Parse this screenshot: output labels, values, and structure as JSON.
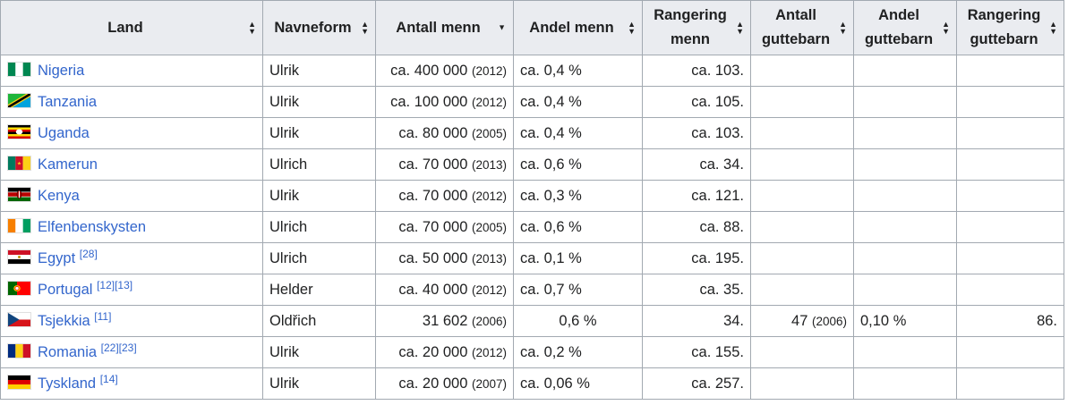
{
  "columns": [
    {
      "label": "Land",
      "sort": "both"
    },
    {
      "label": "Navneform",
      "sort": "both"
    },
    {
      "label": "Antall menn",
      "sort": "down"
    },
    {
      "label": "Andel menn",
      "sort": "both"
    },
    {
      "label": "Rangering menn",
      "sort": "both"
    },
    {
      "label": "Antall guttebarn",
      "sort": "both"
    },
    {
      "label": "Andel guttebarn",
      "sort": "both"
    },
    {
      "label": "Rangering guttebarn",
      "sort": "both"
    }
  ],
  "rows": [
    {
      "country": "Nigeria",
      "ref": "",
      "flag": "nigeria-flag-icon",
      "name_form": "Ulrik",
      "men_count": "ca. 400 000",
      "men_year": "(2012)",
      "men_share": "ca. 0,4 %",
      "men_rank": "ca. 103.",
      "boys_count": "",
      "boys_year": "",
      "boys_share": "",
      "boys_rank": ""
    },
    {
      "country": "Tanzania",
      "ref": "",
      "flag": "tanzania-flag-icon",
      "name_form": "Ulrik",
      "men_count": "ca. 100 000",
      "men_year": "(2012)",
      "men_share": "ca. 0,4 %",
      "men_rank": "ca. 105.",
      "boys_count": "",
      "boys_year": "",
      "boys_share": "",
      "boys_rank": ""
    },
    {
      "country": "Uganda",
      "ref": "",
      "flag": "uganda-flag-icon",
      "name_form": "Ulrik",
      "men_count": "ca. 80 000",
      "men_year": "(2005)",
      "men_share": "ca. 0,4 %",
      "men_rank": "ca. 103.",
      "boys_count": "",
      "boys_year": "",
      "boys_share": "",
      "boys_rank": ""
    },
    {
      "country": "Kamerun",
      "ref": "",
      "flag": "cameroon-flag-icon",
      "name_form": "Ulrich",
      "men_count": "ca. 70 000",
      "men_year": "(2013)",
      "men_share": "ca. 0,6 %",
      "men_rank": "ca. 34.",
      "boys_count": "",
      "boys_year": "",
      "boys_share": "",
      "boys_rank": ""
    },
    {
      "country": "Kenya",
      "ref": "",
      "flag": "kenya-flag-icon",
      "name_form": "Ulrik",
      "men_count": "ca. 70 000",
      "men_year": "(2012)",
      "men_share": "ca. 0,3 %",
      "men_rank": "ca. 121.",
      "boys_count": "",
      "boys_year": "",
      "boys_share": "",
      "boys_rank": ""
    },
    {
      "country": "Elfenbenskysten",
      "ref": "",
      "flag": "ivory-coast-flag-icon",
      "name_form": "Ulrich",
      "men_count": "ca. 70 000",
      "men_year": "(2005)",
      "men_share": "ca. 0,6 %",
      "men_rank": "ca. 88.",
      "boys_count": "",
      "boys_year": "",
      "boys_share": "",
      "boys_rank": ""
    },
    {
      "country": "Egypt",
      "ref": "[28]",
      "flag": "egypt-flag-icon",
      "name_form": "Ulrich",
      "men_count": "ca. 50 000",
      "men_year": "(2013)",
      "men_share": "ca. 0,1 %",
      "men_rank": "ca. 195.",
      "boys_count": "",
      "boys_year": "",
      "boys_share": "",
      "boys_rank": ""
    },
    {
      "country": "Portugal",
      "ref": "[12][13]",
      "flag": "portugal-flag-icon",
      "name_form": "Helder",
      "men_count": "ca. 40 000",
      "men_year": "(2012)",
      "men_share": "ca. 0,7 %",
      "men_rank": "ca. 35.",
      "boys_count": "",
      "boys_year": "",
      "boys_share": "",
      "boys_rank": ""
    },
    {
      "country": "Tsjekkia",
      "ref": "[11]",
      "flag": "czechia-flag-icon",
      "name_form": "Oldřich",
      "men_count": "31 602",
      "men_year": "(2006)",
      "men_share": "0,6 %",
      "men_rank": "34.",
      "boys_count": "47",
      "boys_year": "(2006)",
      "boys_share": "0,10 %",
      "boys_rank": "86."
    },
    {
      "country": "Romania",
      "ref": "[22][23]",
      "flag": "romania-flag-icon",
      "name_form": "Ulrik",
      "men_count": "ca. 20 000",
      "men_year": "(2012)",
      "men_share": "ca. 0,2 %",
      "men_rank": "ca. 155.",
      "boys_count": "",
      "boys_year": "",
      "boys_share": "",
      "boys_rank": ""
    },
    {
      "country": "Tyskland",
      "ref": "[14]",
      "flag": "germany-flag-icon",
      "name_form": "Ulrik",
      "men_count": "ca. 20 000",
      "men_year": "(2007)",
      "men_share": "ca. 0,06 %",
      "men_rank": "ca. 257.",
      "boys_count": "",
      "boys_year": "",
      "boys_share": "",
      "boys_rank": ""
    }
  ],
  "colors": {
    "link": "#3366cc",
    "header_bg": "#eaecf0",
    "border": "#a2a9b1",
    "text": "#202122"
  }
}
